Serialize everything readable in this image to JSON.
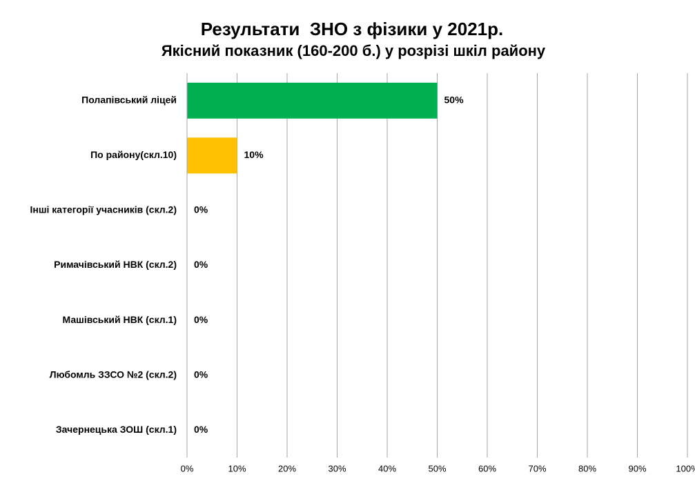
{
  "chart_data": {
    "type": "barh",
    "title": "Результати  ЗНО з фізики у 2021р.",
    "subtitle": "Якісний показник (160-200 б.) у розрізі шкіл району",
    "categories": [
      "Полапівський ліцей",
      "По району(скл.10)",
      "Інші категорії учасників (скл.2)",
      "Римачівський НВК (скл.2)",
      "Машівський НВК (скл.1)",
      "Любомль ЗЗСО №2 (скл.2)",
      "Зачернецька ЗОШ (скл.1)"
    ],
    "values": [
      50,
      10,
      0,
      0,
      0,
      0,
      0
    ],
    "value_labels": [
      "50%",
      "10%",
      "0%",
      "0%",
      "0%",
      "0%",
      "0%"
    ],
    "colors": [
      "#00b050",
      "#ffc000",
      "#00b050",
      "#00b050",
      "#00b050",
      "#00b050",
      "#00b050"
    ],
    "xlim": [
      0,
      100
    ],
    "xticks": [
      {
        "value": 0,
        "label": "0%"
      },
      {
        "value": 10,
        "label": "10%"
      },
      {
        "value": 20,
        "label": "20%"
      },
      {
        "value": 30,
        "label": "30%"
      },
      {
        "value": 40,
        "label": "40%"
      },
      {
        "value": 50,
        "label": "50%"
      },
      {
        "value": 60,
        "label": "60%"
      },
      {
        "value": 70,
        "label": "70%"
      },
      {
        "value": 80,
        "label": "80%"
      },
      {
        "value": 90,
        "label": "90%"
      },
      {
        "value": 100,
        "label": "100%"
      }
    ],
    "grid": true
  }
}
